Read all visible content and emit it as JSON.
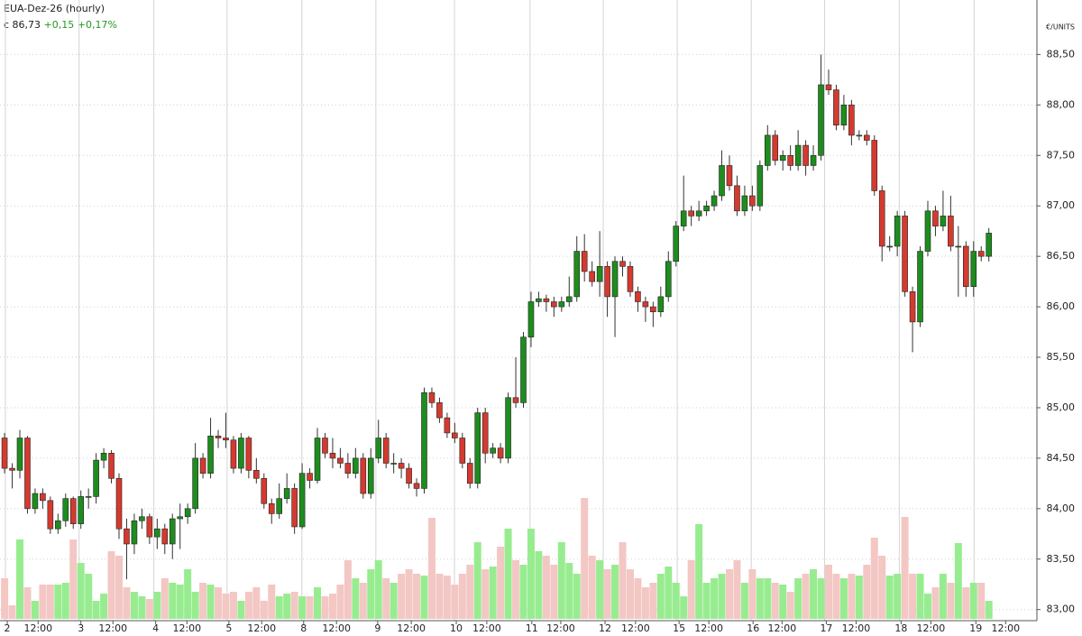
{
  "chart_data": {
    "type": "candlestick",
    "title": "EUA-Dez-26 (hourly)",
    "last_label": "c 86,73",
    "change": "+0,15",
    "change_pct": "+0,17%",
    "y_unit": "€/UNITS",
    "up_color": "#1e8c1e",
    "down_color": "#d43a2f",
    "volume_up_color": "#98ec90",
    "volume_down_color": "#f3c7c4",
    "grid": true,
    "xlim": [
      -0.6,
      135.3
    ],
    "xticks": [
      {
        "value": 0.35,
        "label": "2"
      },
      {
        "value": 4.4,
        "label": "12:00"
      },
      {
        "value": 10.0,
        "label": "3"
      },
      {
        "value": 14.2,
        "label": "12:00"
      },
      {
        "value": 19.8,
        "label": "4"
      },
      {
        "value": 23.9,
        "label": "12:00"
      },
      {
        "value": 29.4,
        "label": "5"
      },
      {
        "value": 33.7,
        "label": "12:00"
      },
      {
        "value": 39.2,
        "label": "8"
      },
      {
        "value": 43.5,
        "label": "12:00"
      },
      {
        "value": 48.9,
        "label": "9"
      },
      {
        "value": 53.3,
        "label": "12:00"
      },
      {
        "value": 59.2,
        "label": "10"
      },
      {
        "value": 63.2,
        "label": "12:00"
      },
      {
        "value": 69.1,
        "label": "11"
      },
      {
        "value": 72.9,
        "label": "12:00"
      },
      {
        "value": 78.7,
        "label": "12"
      },
      {
        "value": 82.7,
        "label": "12:00"
      },
      {
        "value": 88.4,
        "label": "15"
      },
      {
        "value": 92.3,
        "label": "12:00"
      },
      {
        "value": 98.1,
        "label": "16"
      },
      {
        "value": 101.9,
        "label": "12:00"
      },
      {
        "value": 107.7,
        "label": "17"
      },
      {
        "value": 111.6,
        "label": "12:00"
      },
      {
        "value": 117.5,
        "label": "18"
      },
      {
        "value": 121.4,
        "label": "12:00"
      },
      {
        "value": 127.3,
        "label": "19"
      },
      {
        "value": 131.2,
        "label": "12:00"
      }
    ],
    "ylim": [
      82.89,
      89.04
    ],
    "yticks": [
      {
        "value": 83.0,
        "label": "83,00"
      },
      {
        "value": 83.5,
        "label": "83,50"
      },
      {
        "value": 84.0,
        "label": "84,00"
      },
      {
        "value": 84.5,
        "label": "84,50"
      },
      {
        "value": 85.0,
        "label": "85,00"
      },
      {
        "value": 85.5,
        "label": "85,50"
      },
      {
        "value": 86.0,
        "label": "86,00"
      },
      {
        "value": 86.5,
        "label": "86,50"
      },
      {
        "value": 87.0,
        "label": "87,00"
      },
      {
        "value": 87.5,
        "label": "87,50"
      },
      {
        "value": 88.0,
        "label": "88,00"
      },
      {
        "value": 88.5,
        "label": "88,50"
      }
    ],
    "volume_lim": [
      0,
      140
    ],
    "open": [
      84.7,
      84.4,
      84.38,
      84.7,
      84.0,
      84.15,
      84.08,
      83.8,
      83.88,
      84.1,
      83.85,
      84.12,
      84.12,
      84.48,
      84.55,
      84.3,
      83.8,
      83.65,
      83.88,
      83.92,
      83.72,
      83.8,
      83.65,
      83.9,
      83.92,
      84.0,
      84.5,
      84.35,
      84.72,
      84.7,
      84.68,
      84.4,
      84.7,
      84.38,
      84.3,
      84.05,
      83.95,
      84.1,
      84.2,
      83.82,
      84.35,
      84.28,
      84.7,
      84.55,
      84.5,
      84.45,
      84.35,
      84.5,
      84.15,
      84.5,
      84.7,
      84.45,
      84.45,
      84.4,
      84.25,
      84.2,
      85.15,
      85.05,
      84.9,
      84.75,
      84.7,
      84.45,
      84.25,
      84.95,
      84.55,
      84.6,
      84.5,
      85.1,
      85.05,
      85.7,
      86.05,
      86.08,
      86.05,
      86.0,
      86.05,
      86.1,
      86.55,
      86.35,
      86.25,
      86.4,
      86.1,
      86.45,
      86.4,
      86.15,
      86.05,
      86.0,
      85.95,
      86.1,
      86.45,
      86.8,
      86.95,
      86.9,
      86.95,
      87.0,
      87.1,
      87.4,
      87.2,
      86.95,
      87.1,
      87.0,
      87.4,
      87.7,
      87.45,
      87.5,
      87.4,
      87.6,
      87.4,
      87.5,
      88.2,
      88.15,
      87.8,
      88.0,
      87.7,
      87.7,
      87.65,
      87.15,
      86.6,
      86.6,
      86.9,
      86.15,
      85.85,
      86.55,
      86.95,
      86.8,
      86.9,
      86.6,
      86.6,
      86.2,
      86.55,
      86.5
    ],
    "high": [
      84.75,
      84.45,
      84.78,
      84.72,
      84.2,
      84.2,
      84.12,
      83.95,
      84.15,
      84.12,
      84.18,
      84.2,
      84.55,
      84.6,
      84.58,
      84.35,
      83.9,
      83.95,
      84.0,
      83.95,
      83.9,
      83.85,
      83.95,
      84.05,
      84.05,
      84.65,
      84.55,
      84.9,
      84.78,
      84.95,
      84.72,
      84.75,
      84.72,
      84.5,
      84.35,
      84.1,
      84.25,
      84.35,
      84.25,
      84.45,
      84.4,
      84.8,
      84.75,
      84.7,
      84.6,
      84.55,
      84.6,
      84.55,
      84.6,
      84.88,
      84.75,
      84.55,
      84.5,
      84.45,
      84.3,
      85.2,
      85.2,
      85.1,
      84.95,
      84.85,
      84.75,
      84.5,
      85.0,
      85.0,
      84.65,
      84.65,
      85.15,
      85.5,
      85.75,
      86.15,
      86.15,
      86.12,
      86.1,
      86.1,
      86.3,
      86.7,
      86.72,
      86.45,
      86.75,
      86.45,
      86.5,
      86.5,
      86.45,
      86.2,
      86.1,
      86.05,
      86.2,
      86.55,
      86.85,
      87.3,
      87.0,
      87.05,
      87.05,
      87.15,
      87.55,
      87.5,
      87.3,
      87.2,
      87.2,
      87.45,
      87.8,
      87.75,
      87.55,
      87.6,
      87.75,
      87.65,
      87.6,
      88.5,
      88.35,
      88.2,
      88.1,
      88.05,
      87.75,
      87.75,
      87.7,
      87.2,
      86.7,
      86.95,
      86.95,
      86.2,
      86.6,
      87.05,
      87.0,
      87.15,
      87.1,
      86.8,
      86.65,
      86.65,
      86.6,
      86.78
    ],
    "low": [
      84.35,
      84.2,
      84.3,
      83.95,
      83.95,
      84.0,
      83.75,
      83.75,
      83.82,
      83.8,
      83.8,
      84.0,
      84.05,
      84.4,
      84.25,
      83.7,
      83.3,
      83.55,
      83.8,
      83.65,
      83.6,
      83.55,
      83.5,
      83.6,
      83.85,
      83.95,
      84.3,
      84.3,
      84.6,
      84.6,
      84.35,
      84.35,
      84.3,
      84.25,
      84.0,
      83.85,
      83.9,
      84.05,
      83.75,
      83.8,
      84.2,
      84.25,
      84.5,
      84.4,
      84.4,
      84.3,
      84.3,
      84.1,
      84.1,
      84.45,
      84.4,
      84.35,
      84.3,
      84.2,
      84.12,
      84.15,
      85.0,
      84.85,
      84.7,
      84.65,
      84.4,
      84.2,
      84.2,
      84.45,
      84.5,
      84.45,
      84.45,
      85.0,
      85.0,
      85.6,
      86.0,
      85.95,
      85.9,
      85.95,
      86.0,
      86.05,
      86.25,
      86.2,
      86.1,
      85.9,
      85.7,
      86.3,
      86.1,
      85.95,
      85.85,
      85.8,
      85.9,
      86.05,
      86.4,
      86.75,
      86.8,
      86.85,
      86.9,
      86.95,
      87.05,
      87.15,
      86.9,
      86.9,
      86.95,
      86.95,
      87.35,
      87.4,
      87.35,
      87.35,
      87.35,
      87.3,
      87.35,
      87.45,
      88.1,
      87.75,
      87.75,
      87.6,
      87.65,
      87.6,
      87.1,
      86.45,
      86.55,
      86.5,
      86.1,
      85.55,
      85.8,
      86.5,
      86.7,
      86.75,
      86.55,
      86.1,
      86.1,
      86.1,
      86.45,
      86.45
    ],
    "close": [
      84.4,
      84.38,
      84.7,
      84.0,
      84.15,
      84.08,
      83.8,
      83.88,
      84.1,
      83.85,
      84.12,
      84.12,
      84.48,
      84.55,
      84.3,
      83.8,
      83.65,
      83.88,
      83.92,
      83.72,
      83.8,
      83.65,
      83.9,
      83.92,
      84.0,
      84.5,
      84.35,
      84.72,
      84.7,
      84.68,
      84.4,
      84.7,
      84.38,
      84.3,
      84.05,
      83.95,
      84.1,
      84.2,
      83.82,
      84.35,
      84.28,
      84.7,
      84.55,
      84.5,
      84.45,
      84.35,
      84.5,
      84.15,
      84.5,
      84.7,
      84.45,
      84.45,
      84.4,
      84.25,
      84.2,
      85.15,
      85.05,
      84.9,
      84.75,
      84.7,
      84.45,
      84.25,
      84.95,
      84.55,
      84.6,
      84.5,
      85.1,
      85.05,
      85.7,
      86.05,
      86.08,
      86.05,
      86.0,
      86.05,
      86.1,
      86.55,
      86.35,
      86.25,
      86.4,
      86.1,
      86.45,
      86.4,
      86.15,
      86.05,
      86.0,
      85.95,
      86.1,
      86.45,
      86.8,
      86.95,
      86.9,
      86.95,
      87.0,
      87.1,
      87.4,
      87.2,
      86.95,
      87.1,
      87.0,
      87.4,
      87.7,
      87.45,
      87.5,
      87.4,
      87.6,
      87.4,
      87.5,
      88.2,
      88.15,
      87.8,
      88.0,
      87.7,
      87.7,
      87.65,
      87.15,
      86.6,
      86.6,
      86.9,
      86.15,
      85.85,
      86.55,
      86.95,
      86.8,
      86.9,
      86.6,
      86.6,
      86.2,
      86.55,
      86.5,
      86.73
    ],
    "volume": [
      45,
      15,
      88,
      35,
      20,
      38,
      38,
      38,
      40,
      88,
      62,
      50,
      20,
      28,
      75,
      70,
      35,
      30,
      25,
      22,
      30,
      45,
      40,
      38,
      55,
      30,
      40,
      38,
      35,
      28,
      30,
      20,
      30,
      35,
      20,
      38,
      25,
      28,
      30,
      25,
      25,
      35,
      25,
      28,
      38,
      65,
      45,
      40,
      55,
      65,
      45,
      40,
      50,
      55,
      50,
      48,
      112,
      50,
      48,
      38,
      50,
      60,
      85,
      55,
      58,
      80,
      100,
      65,
      60,
      100,
      75,
      70,
      60,
      85,
      62,
      50,
      134,
      70,
      65,
      55,
      60,
      85,
      55,
      45,
      35,
      40,
      50,
      58,
      40,
      25,
      65,
      105,
      40,
      45,
      50,
      55,
      65,
      40,
      55,
      45,
      45,
      40,
      38,
      30,
      45,
      50,
      55,
      45,
      60,
      50,
      45,
      50,
      48,
      60,
      90,
      70,
      48,
      50,
      113,
      50,
      50,
      28,
      35,
      50,
      40,
      84,
      35,
      40,
      40,
      20
    ]
  }
}
